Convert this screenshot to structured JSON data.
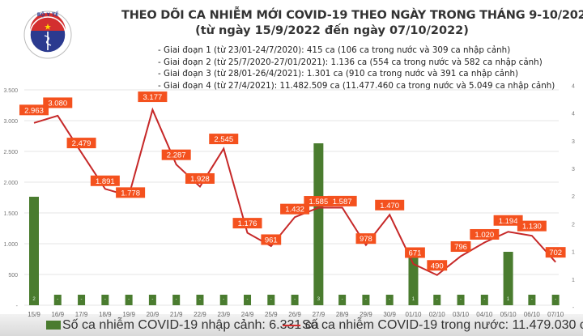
{
  "header": {
    "logo": {
      "top_text": "BỘ Y TẾ",
      "bottom_text": "MINISTRY OF HEALTH",
      "icon": "caduceus-icon"
    },
    "title_line1": "THEO DÕI CA NHIỄM MỚI COVID-19 THEO NGÀY TRONG THÁNG 9-10/2022",
    "title_line2": "(từ ngày 15/9/2022 đến ngày 07/10/2022)",
    "phases": [
      "- Giai đoạn 1 (từ 23/01-24/7/2020): 415 ca (106 ca trong nước và 309 ca nhập cảnh)",
      "- Giai đoạn 2 (từ 25/7/2020-27/01/2021): 1.136 ca (554 ca trong nước và 582 ca nhập cảnh)",
      "- Giai đoạn 3 (từ 28/01-26/4/2021): 1.301 ca (910 ca trong nước và 391 ca nhập cảnh)",
      "- Giai đoạn 4 (từ 27/4/2021): 11.482.509 ca (11.477.460 ca trong nước và 5.049 ca nhập cảnh)"
    ]
  },
  "legend": {
    "bar_label": "Số ca nhiễm COVID-19 nhập cảnh: 6.331 ca",
    "line_label": "Số ca nhiễm COVID-19 trong nước: 11.479.030 ca"
  },
  "colors": {
    "bar": "#4a7c2f",
    "line": "#c62828",
    "label_bg": "#f4511e",
    "grid": "#e6e6e6"
  },
  "chart_data": {
    "type": "bar+line",
    "title": "THEO DÕI CA NHIỄM MỚI COVID-19 THEO NGÀY TRONG THÁNG 9-10/2022",
    "subtitle": "(từ ngày 15/9/2022 đến ngày 07/10/2022)",
    "categories": [
      "15/9",
      "16/9",
      "17/9",
      "18/9",
      "19/9",
      "20/9",
      "21/9",
      "22/9",
      "23/9",
      "24/9",
      "25/9",
      "26/9",
      "27/9",
      "28/9",
      "29/9",
      "30/9",
      "01/10",
      "02/10",
      "03/10",
      "04/10",
      "05/10",
      "06/10",
      "07/10"
    ],
    "series": [
      {
        "name": "Số ca nhiễm COVID-19 trong nước",
        "type": "line",
        "axis": "left",
        "values": [
          2963,
          3080,
          2479,
          1891,
          1778,
          3177,
          2287,
          1928,
          2545,
          1176,
          961,
          1432,
          1585,
          1587,
          978,
          1470,
          671,
          490,
          796,
          1020,
          1194,
          1130,
          702
        ],
        "labels": [
          "2.963",
          "3.080",
          "2.479",
          "1.891",
          "1.778",
          "3.177",
          "2.287",
          "1.928",
          "2.545",
          "1.176",
          "961",
          "1.432",
          "1.585",
          "1.587",
          "978",
          "1.470",
          "671",
          "490",
          "796",
          "1.020",
          "1.194",
          "1.130",
          "702"
        ]
      },
      {
        "name": "Số ca nhiễm COVID-19 nhập cảnh",
        "type": "bar",
        "axis": "right",
        "values": [
          2,
          0,
          0,
          0,
          0,
          0,
          0,
          0,
          0,
          0,
          0,
          0,
          3,
          0,
          0,
          0,
          1,
          0,
          0,
          0,
          1,
          0,
          0
        ],
        "labels": [
          "2",
          "-",
          "-",
          "-",
          "-",
          "-",
          "-",
          "-",
          "-",
          "-",
          "-",
          "-",
          "3",
          "-",
          "-",
          "-",
          "1",
          "-",
          "-",
          "-",
          "1",
          "-",
          "-"
        ]
      }
    ],
    "left_axis": {
      "ticks": [
        "-",
        "500",
        "1.000",
        "1.500",
        "2.000",
        "2.500",
        "3.000",
        "3.500"
      ],
      "range": [
        0,
        3500
      ]
    },
    "right_axis": {
      "ticks": [
        "-",
        "1",
        "1",
        "2",
        "2",
        "3",
        "3",
        "4",
        "4"
      ]
    },
    "legend_position": "bottom",
    "grid": true
  }
}
